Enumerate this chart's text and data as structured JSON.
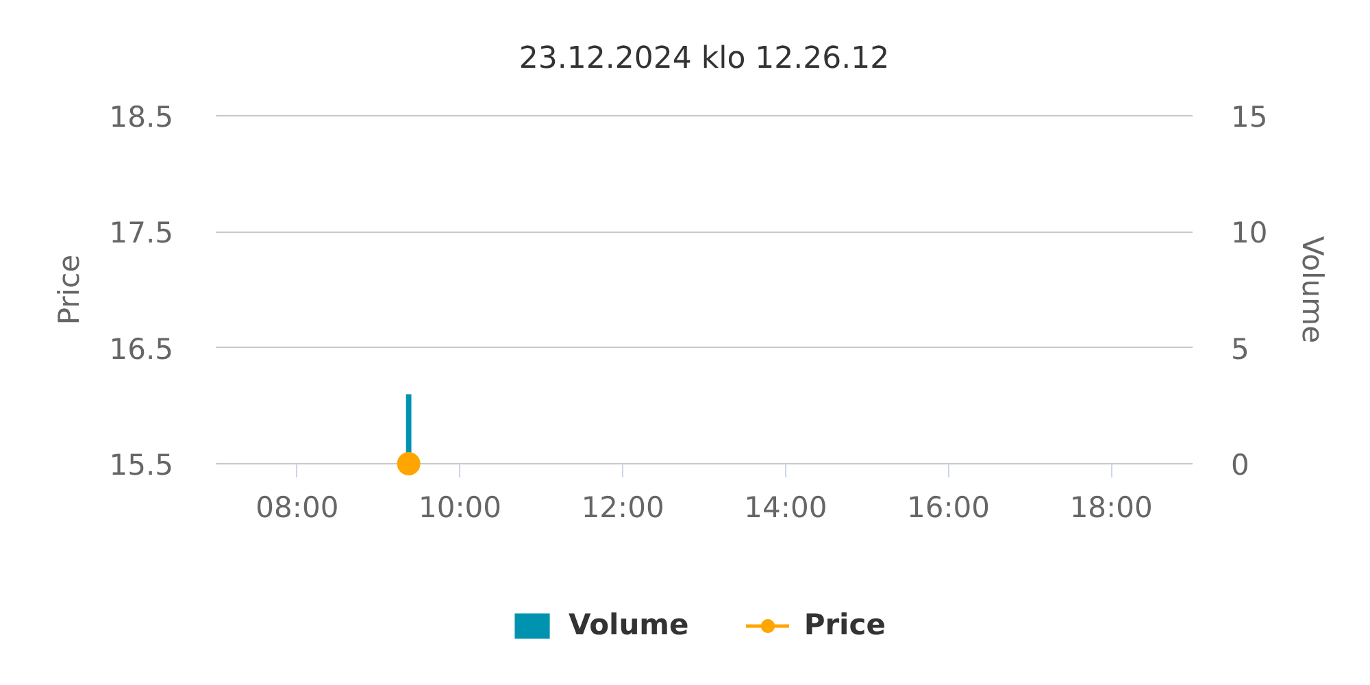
{
  "chart_data": {
    "type": "line",
    "title": "23.12.2024 klo 12.26.12",
    "ylabel": "Price",
    "y2label": "Volume",
    "x": [
      9.37
    ],
    "xlim": [
      7,
      19
    ],
    "xticks": [
      {
        "value": 8,
        "label": "08:00"
      },
      {
        "value": 10,
        "label": "10:00"
      },
      {
        "value": 12,
        "label": "12:00"
      },
      {
        "value": 14,
        "label": "14:00"
      },
      {
        "value": 16,
        "label": "16:00"
      },
      {
        "value": 18,
        "label": "18:00"
      }
    ],
    "ylim": [
      15.5,
      18.5
    ],
    "yticks": [
      15.5,
      16.5,
      17.5,
      18.5
    ],
    "y2lim": [
      0,
      15
    ],
    "y2ticks": [
      0,
      5,
      10,
      15
    ],
    "series": [
      {
        "name": "Volume",
        "type": "bar",
        "axis": "y2",
        "color": "#0093b0",
        "values": [
          3
        ]
      },
      {
        "name": "Price",
        "color": "#ffa500",
        "marker": "circle",
        "values": [
          15.5
        ]
      }
    ],
    "grid": "y",
    "legend": "bottom"
  }
}
